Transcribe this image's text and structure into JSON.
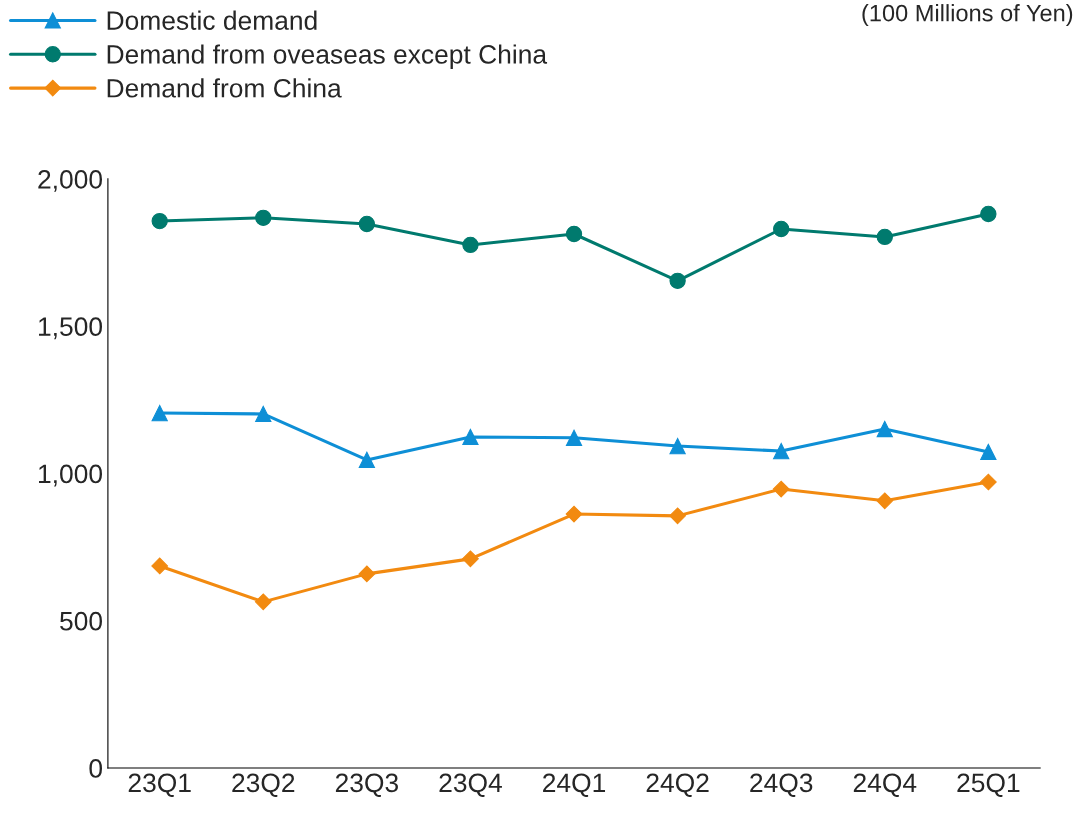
{
  "chart_data": {
    "type": "line",
    "categories": [
      "23Q1",
      "23Q2",
      "23Q3",
      "23Q4",
      "24Q1",
      "24Q2",
      "24Q3",
      "24Q4",
      "25Q1"
    ],
    "series": [
      {
        "name": "Domestic demand",
        "color": "#0e8fd6",
        "marker": "triangle",
        "values": [
          1205,
          1202,
          1046,
          1124,
          1121,
          1093,
          1076,
          1151,
          1073
        ]
      },
      {
        "name": "Demand from oveaseas except China",
        "color": "#007a6e",
        "marker": "circle",
        "values": [
          1857,
          1868,
          1847,
          1776,
          1813,
          1654,
          1830,
          1803,
          1881
        ]
      },
      {
        "name": "Demand from China",
        "color": "#f28a10",
        "marker": "diamond",
        "values": [
          686,
          564,
          659,
          710,
          862,
          856,
          947,
          907,
          971
        ]
      }
    ],
    "ylim": [
      0,
      2000
    ],
    "yticks": [
      0,
      {
        "value": 500,
        "label": "500"
      },
      {
        "value": 1000,
        "label": "1,000"
      },
      {
        "value": 1500,
        "label": "1,500"
      },
      {
        "value": 2000,
        "label": "2,000"
      }
    ],
    "annotations": [
      "(100 Millions of Yen)"
    ],
    "legend": "top left",
    "grid": false,
    "line_style": "solid"
  }
}
